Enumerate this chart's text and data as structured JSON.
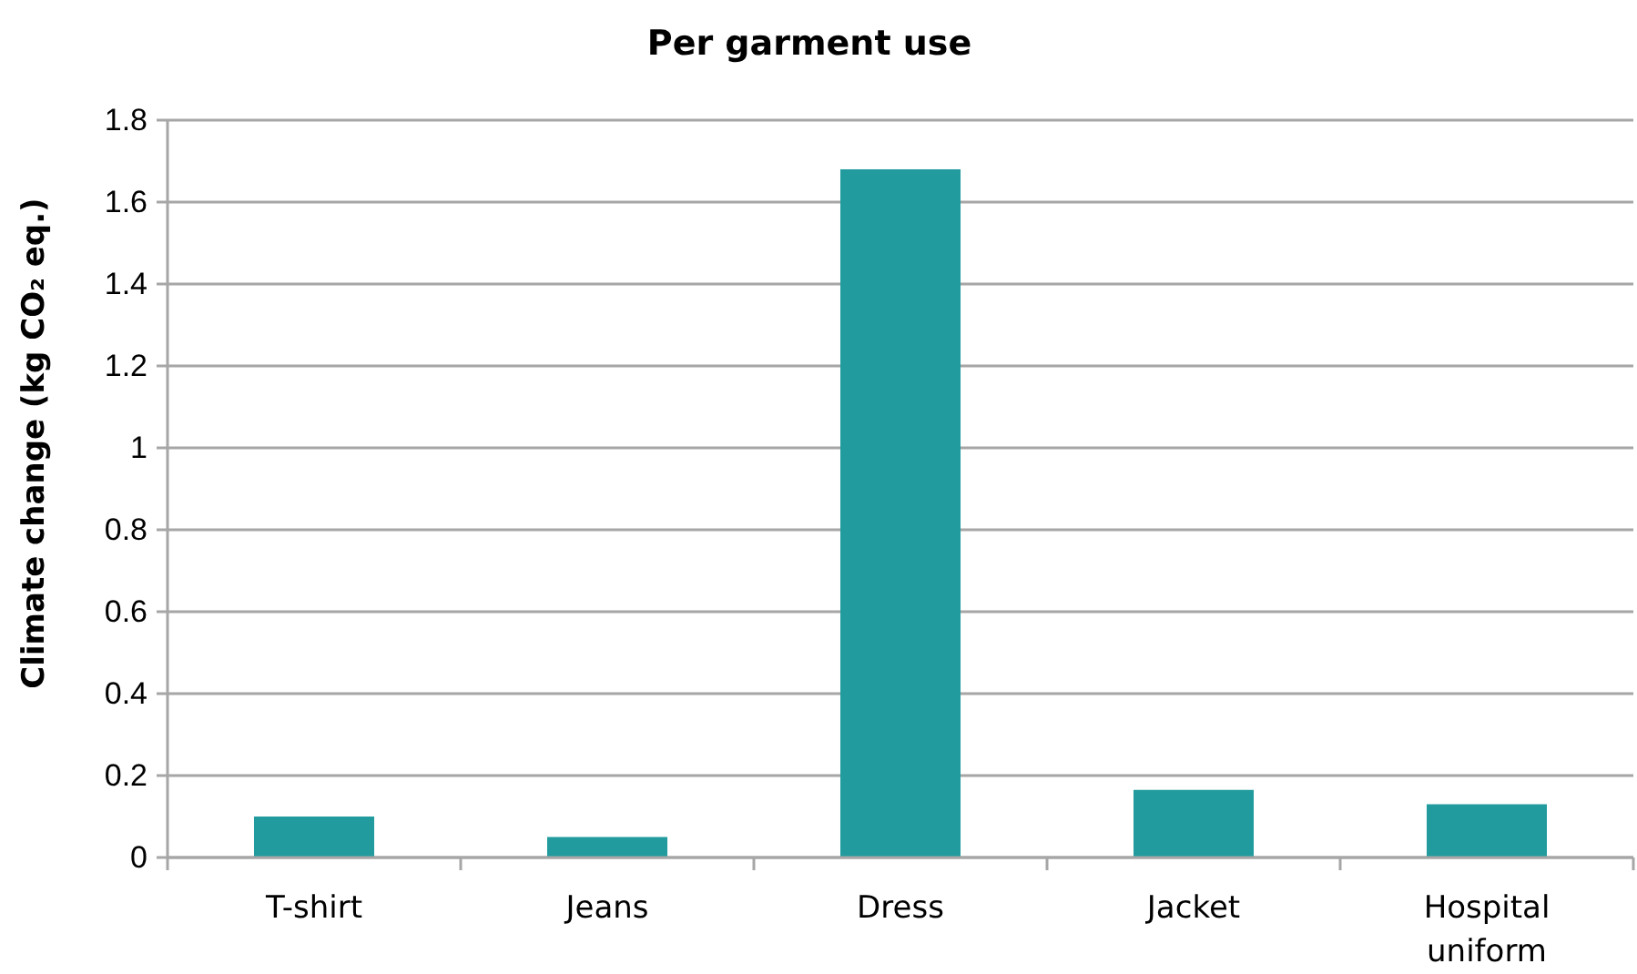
{
  "chart_data": {
    "type": "bar",
    "title": "Per garment use",
    "ylabel": "Climate change (kg CO₂ eq.)",
    "categories": [
      "T-shirt",
      "Jeans",
      "Dress",
      "Jacket",
      "Hospital uniform"
    ],
    "values": [
      0.1,
      0.05,
      1.68,
      0.165,
      0.13
    ],
    "color": "#219b9d",
    "ylim": [
      0,
      1.8
    ],
    "yticks": [
      0,
      0.2,
      0.4,
      0.6,
      0.8,
      1,
      1.2,
      1.4,
      1.6,
      1.8
    ],
    "grid": "y"
  }
}
